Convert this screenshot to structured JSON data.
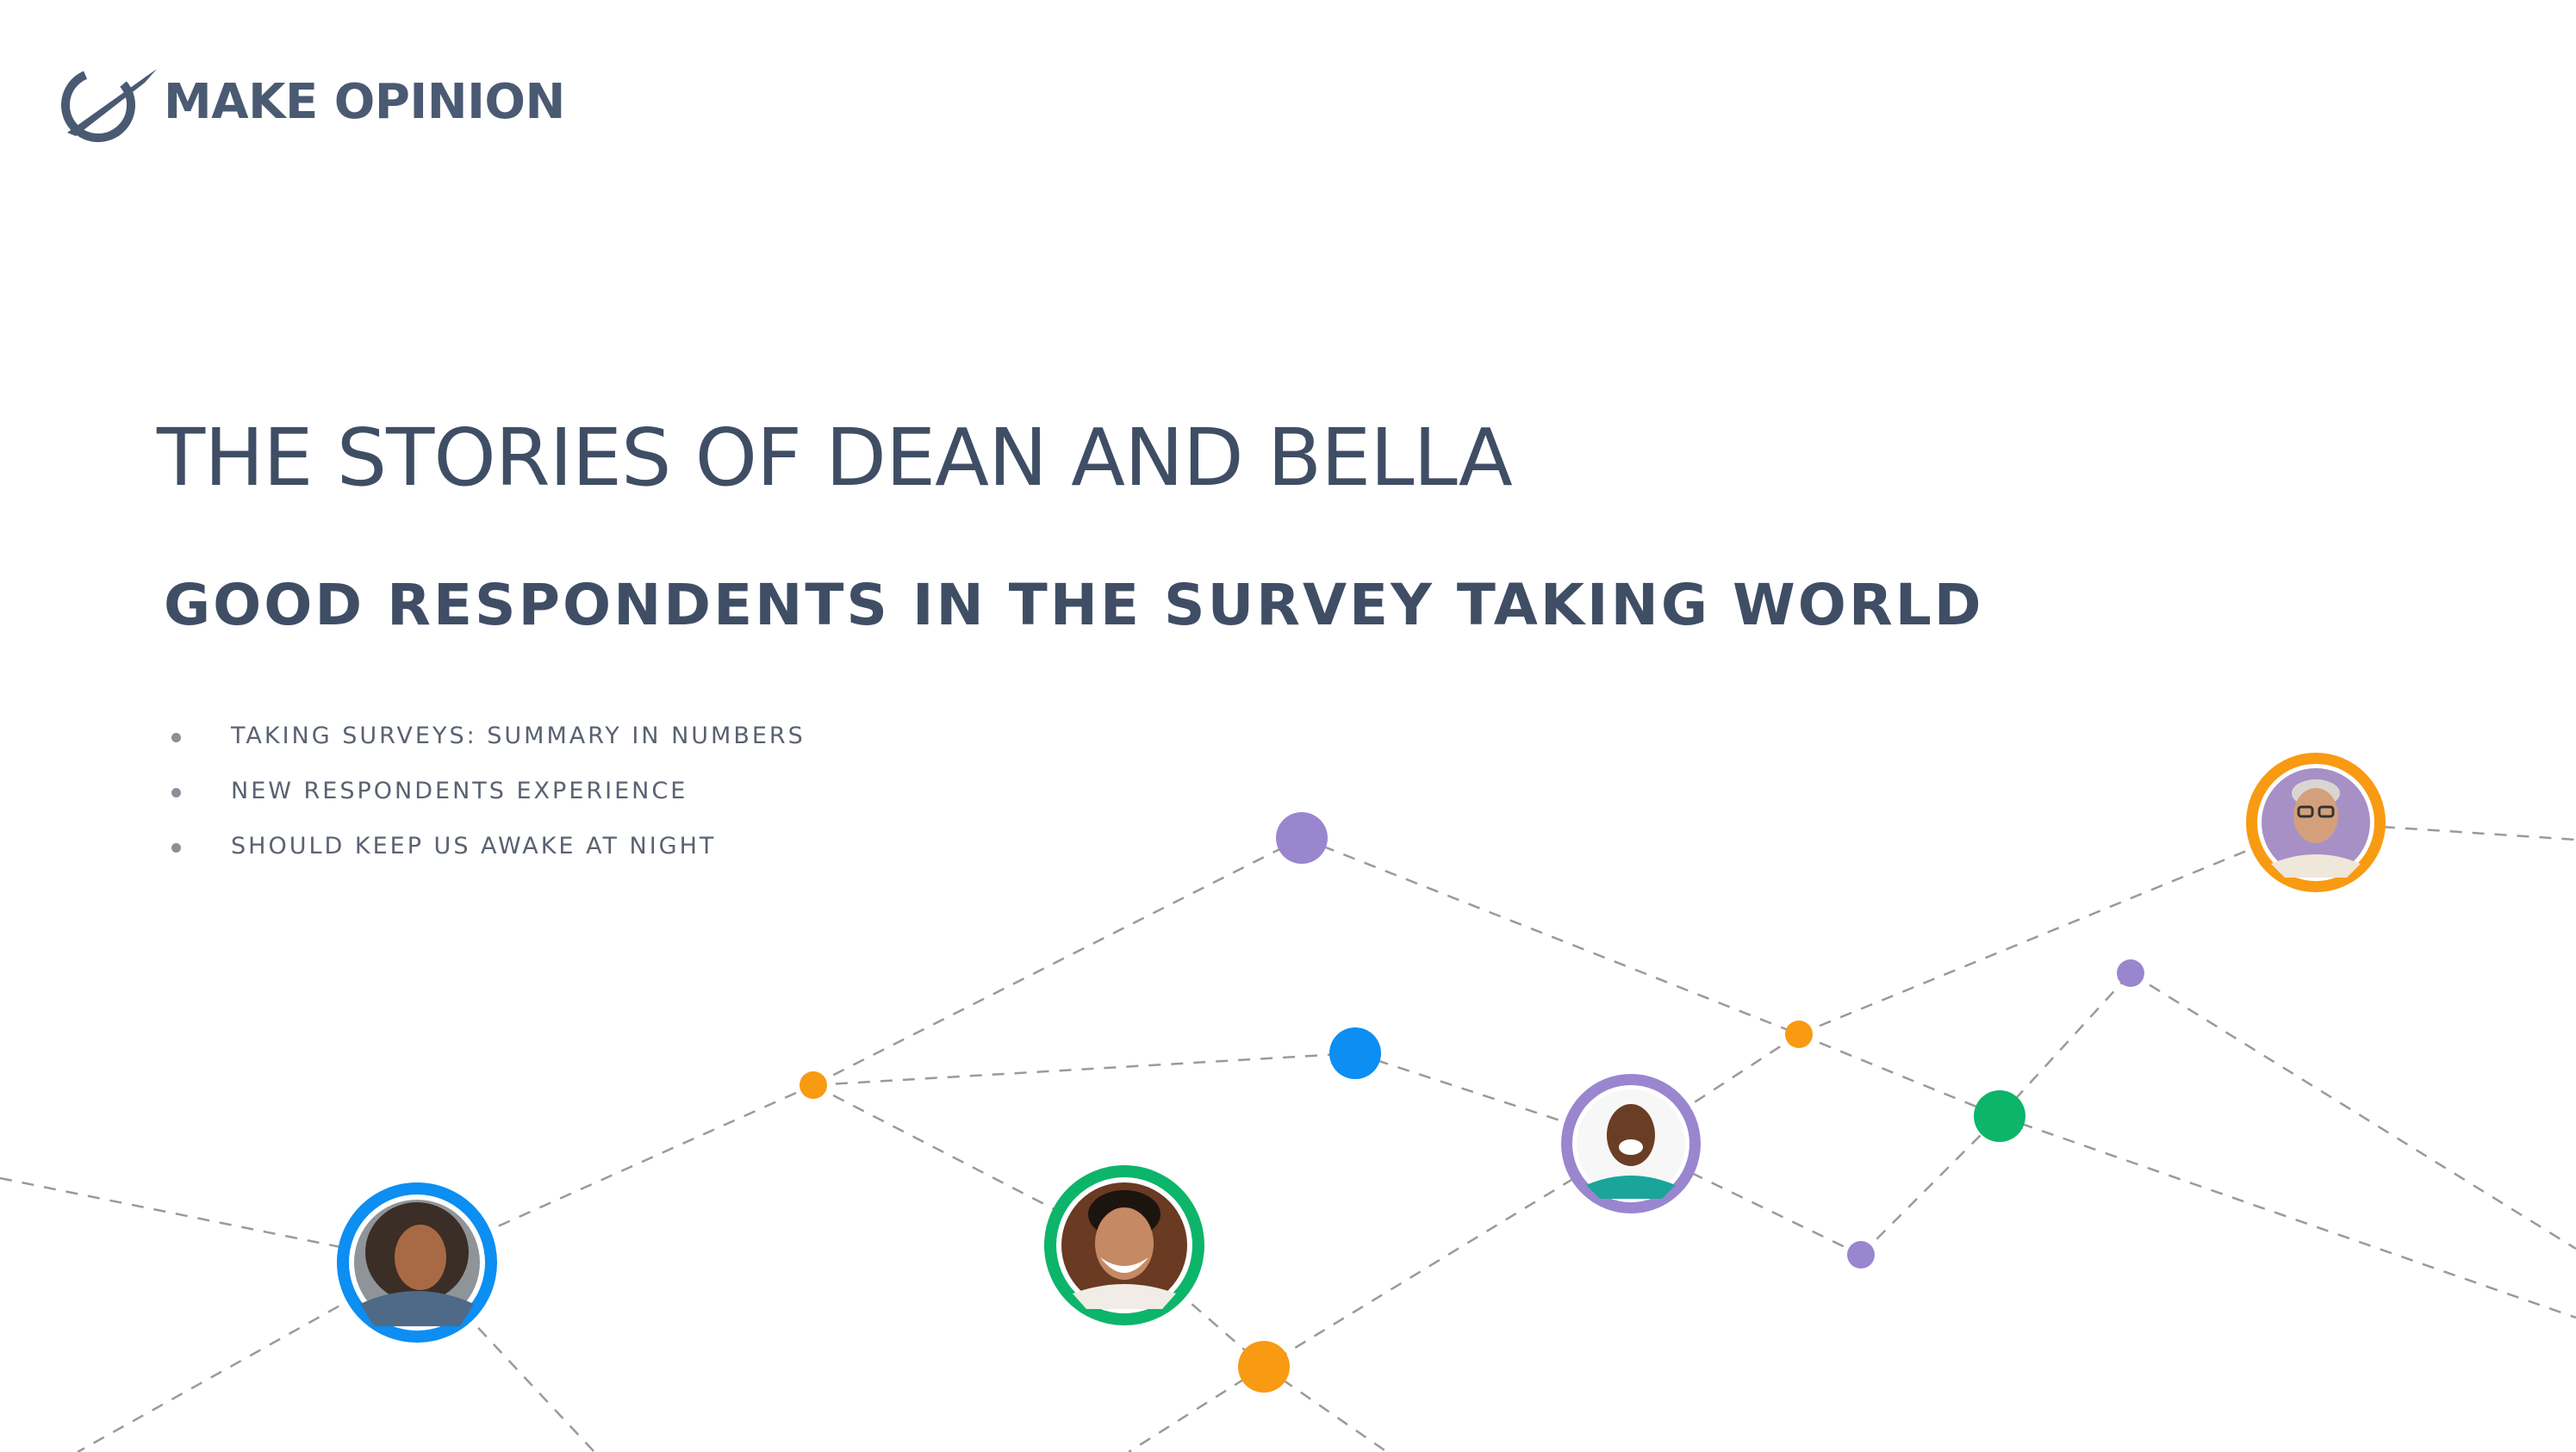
{
  "brand": {
    "name": "MAKE OPINION",
    "logo_icon": "satellite-orbit-logo-icon",
    "color": "#4a5a72"
  },
  "heading": {
    "title": "THE STORIES OF DEAN AND BELLA",
    "subtitle": "GOOD RESPONDENTS IN THE SURVEY TAKING WORLD"
  },
  "bullets": [
    "TAKING SURVEYS: SUMMARY IN NUMBERS",
    "NEW RESPONDENTS EXPERIENCE",
    "SHOULD KEEP US AWAKE AT NIGHT"
  ],
  "network": {
    "line_color": "#9a9a9a",
    "colors": {
      "purple": "#9a86cf",
      "orange": "#f89a12",
      "blue": "#0c8ef2",
      "green": "#0cb56a"
    },
    "avatars": [
      {
        "name": "woman-curly-hair",
        "ring": "blue"
      },
      {
        "name": "man-beard-smiling",
        "ring": "green"
      },
      {
        "name": "man-bald-laughing",
        "ring": "purple"
      },
      {
        "name": "older-man-glasses",
        "ring": "orange"
      }
    ]
  }
}
